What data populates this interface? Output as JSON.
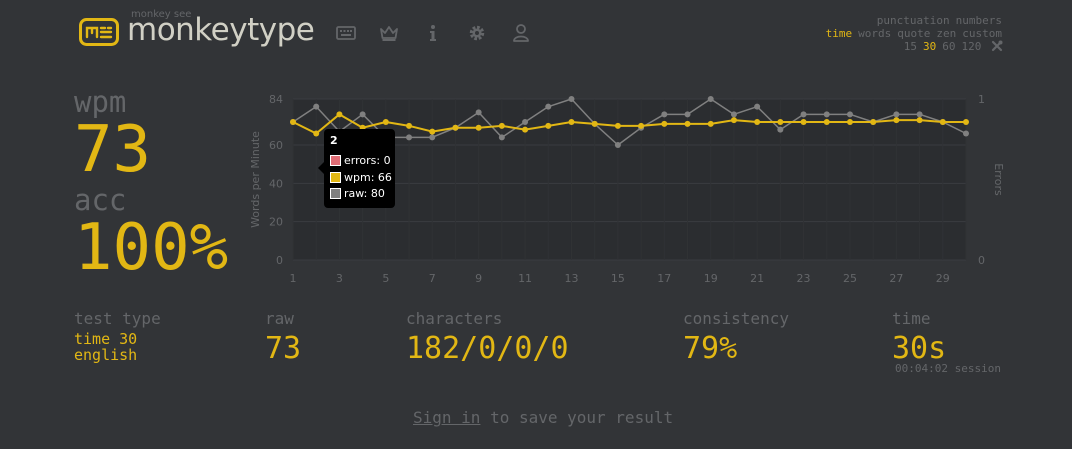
{
  "header": {
    "brand_sub": "monkey see",
    "brand": "monkeytype",
    "nav": [
      {
        "icon": "keyboard-icon"
      },
      {
        "icon": "crown-icon"
      },
      {
        "icon": "info-icon"
      },
      {
        "icon": "gear-icon"
      },
      {
        "icon": "user-icon"
      }
    ]
  },
  "config": {
    "row1": [
      "punctuation",
      "numbers"
    ],
    "row2": [
      "time",
      "words",
      "quote",
      "zen",
      "custom"
    ],
    "row2_active": "time",
    "row3": [
      "15",
      "30",
      "60",
      "120"
    ],
    "row3_active": "30",
    "row3_icon": "tools-icon"
  },
  "stats": {
    "wpm_label": "wpm",
    "wpm": "73",
    "acc_label": "acc",
    "acc": "100%",
    "test_type_label": "test type",
    "test_type_mode": "time 30",
    "test_type_lang": "english",
    "raw_label": "raw",
    "raw": "73",
    "characters_label": "characters",
    "characters": "182/0/0/0",
    "consistency_label": "consistency",
    "consistency": "79%",
    "time_label": "time",
    "time": "30s",
    "session": "00:04:02 session"
  },
  "chart_data": {
    "type": "line",
    "x": [
      1,
      2,
      3,
      4,
      5,
      6,
      7,
      8,
      9,
      10,
      11,
      12,
      13,
      14,
      15,
      16,
      17,
      18,
      19,
      20,
      21,
      22,
      23,
      24,
      25,
      26,
      27,
      28,
      29,
      30
    ],
    "x_tick_labels": [
      "1",
      "3",
      "5",
      "7",
      "9",
      "11",
      "13",
      "15",
      "17",
      "19",
      "21",
      "23",
      "25",
      "27",
      "29"
    ],
    "ylabel": "Words per Minute",
    "ylim": [
      0,
      84
    ],
    "y_ticks": [
      "0",
      "20",
      "40",
      "60",
      "84"
    ],
    "y2label": "Errors",
    "y2lim": [
      0,
      1
    ],
    "y2_ticks": [
      "0",
      "1"
    ],
    "series": [
      {
        "name": "wpm",
        "color": "#e2b714",
        "values": [
          72,
          66,
          76,
          69,
          72,
          70,
          67,
          69,
          69,
          70,
          68,
          70,
          72,
          71,
          70,
          70,
          71,
          71,
          71,
          73,
          72,
          72,
          72,
          72,
          72,
          72,
          73,
          73,
          72,
          72
        ]
      },
      {
        "name": "raw",
        "color": "#808080",
        "values": [
          72,
          80,
          67,
          76,
          64,
          64,
          64,
          69,
          77,
          64,
          72,
          80,
          84,
          71,
          60,
          69,
          76,
          76,
          84,
          76,
          80,
          68,
          76,
          76,
          76,
          72,
          76,
          76,
          72,
          66
        ]
      }
    ],
    "errors": [
      0,
      0,
      0,
      0,
      0,
      0,
      0,
      0,
      0,
      0,
      0,
      0,
      0,
      0,
      0,
      0,
      0,
      0,
      0,
      0,
      0,
      0,
      0,
      0,
      0,
      0,
      0,
      0,
      0,
      0
    ],
    "grid": true,
    "tooltip": {
      "title": "2",
      "errors": "errors: 0",
      "wpm": "wpm: 66",
      "raw": "raw: 80",
      "colors": {
        "errors": "#e06c75",
        "wpm": "#e2b714",
        "raw": "#808080"
      }
    }
  },
  "footer": {
    "signin_link": "Sign in",
    "signin_rest": " to save your result"
  }
}
